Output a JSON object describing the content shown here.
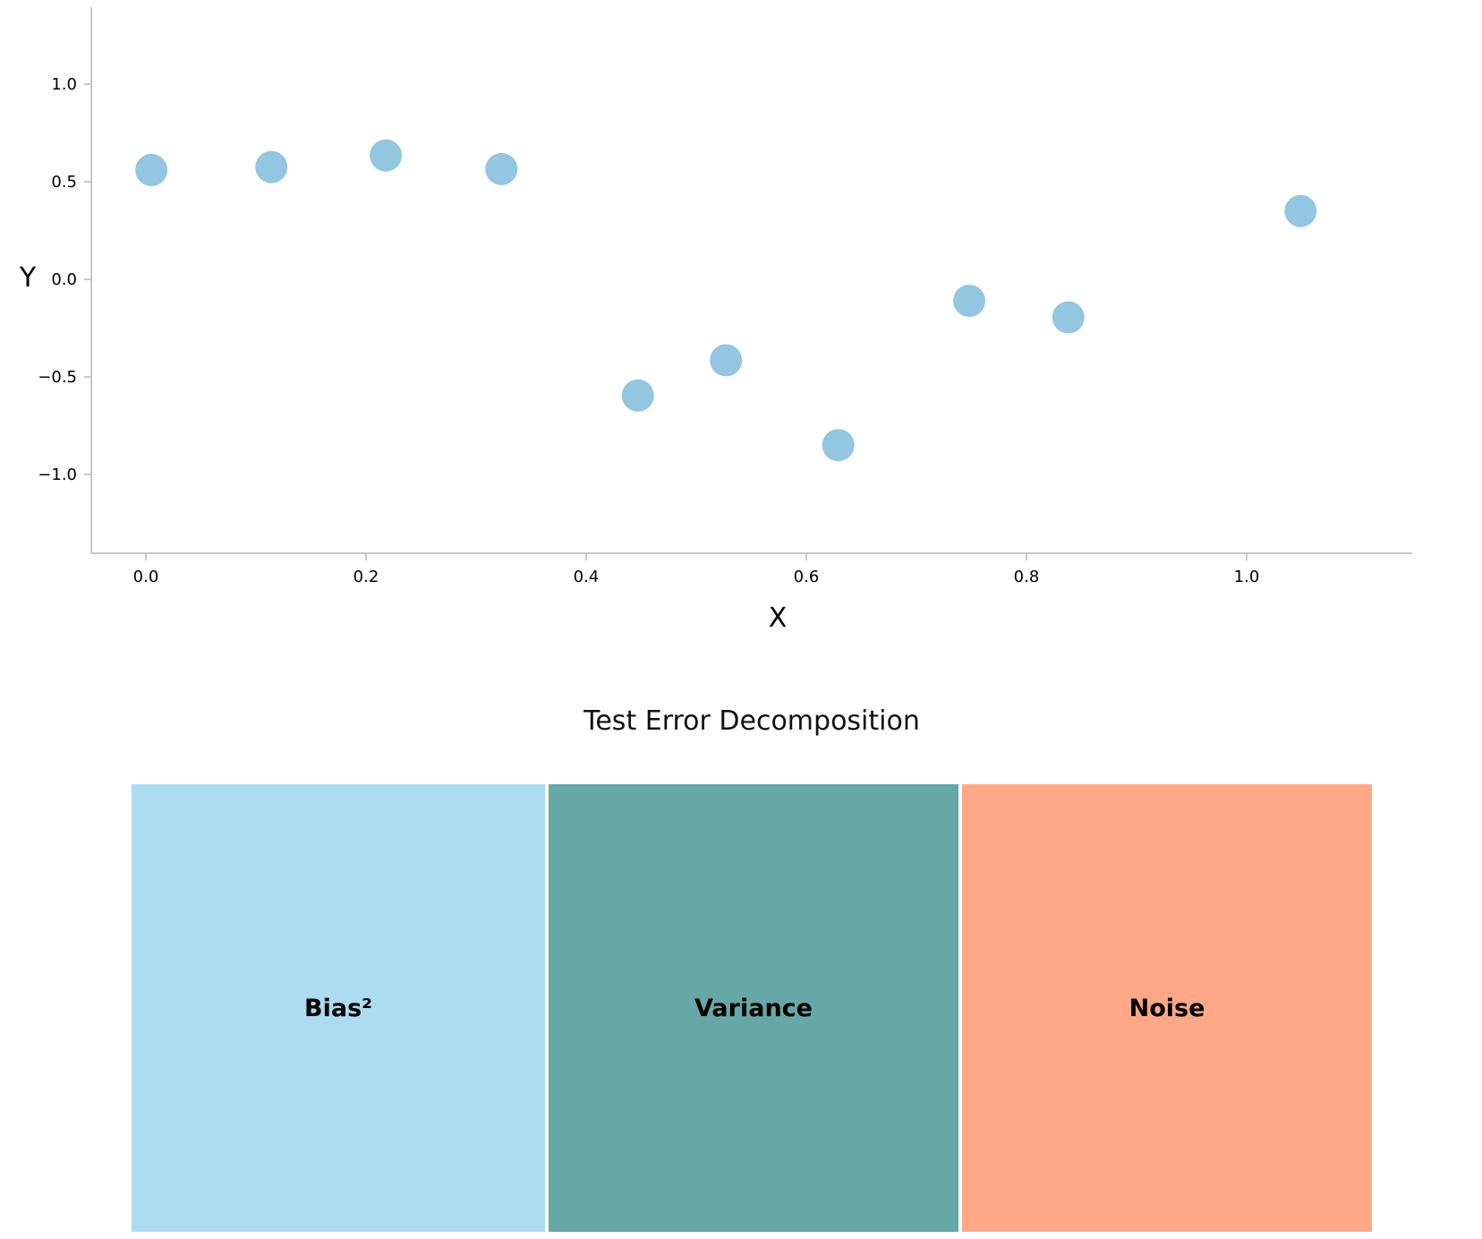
{
  "chart_data": [
    {
      "type": "scatter",
      "title": "",
      "xlabel": "X",
      "ylabel": "Y",
      "xlim": [
        -0.05,
        1.15
      ],
      "ylim": [
        -1.4,
        1.4
      ],
      "grid": false,
      "x_ticks": [
        0.0,
        0.2,
        0.4,
        0.6,
        0.8,
        1.0
      ],
      "y_ticks": [
        1.0,
        0.5,
        0.0,
        -0.5,
        -1.0
      ],
      "point_color": "#93c6e0",
      "points": [
        {
          "x": 0.005,
          "y": 0.56
        },
        {
          "x": 0.114,
          "y": 0.575
        },
        {
          "x": 0.218,
          "y": 0.635
        },
        {
          "x": 0.323,
          "y": 0.565
        },
        {
          "x": 0.447,
          "y": -0.595
        },
        {
          "x": 0.527,
          "y": -0.415
        },
        {
          "x": 0.629,
          "y": -0.85
        },
        {
          "x": 0.748,
          "y": -0.11
        },
        {
          "x": 0.838,
          "y": -0.195
        },
        {
          "x": 1.049,
          "y": 0.35
        }
      ]
    },
    {
      "type": "bar",
      "title": "Test Error Decomposition",
      "orientation": "stacked-horizontal",
      "categories": [
        "Bias²",
        "Variance",
        "Noise"
      ],
      "values": [
        1,
        1,
        1
      ],
      "colors": [
        "#addbf0",
        "#66a8a7",
        "#ffa887"
      ]
    }
  ]
}
